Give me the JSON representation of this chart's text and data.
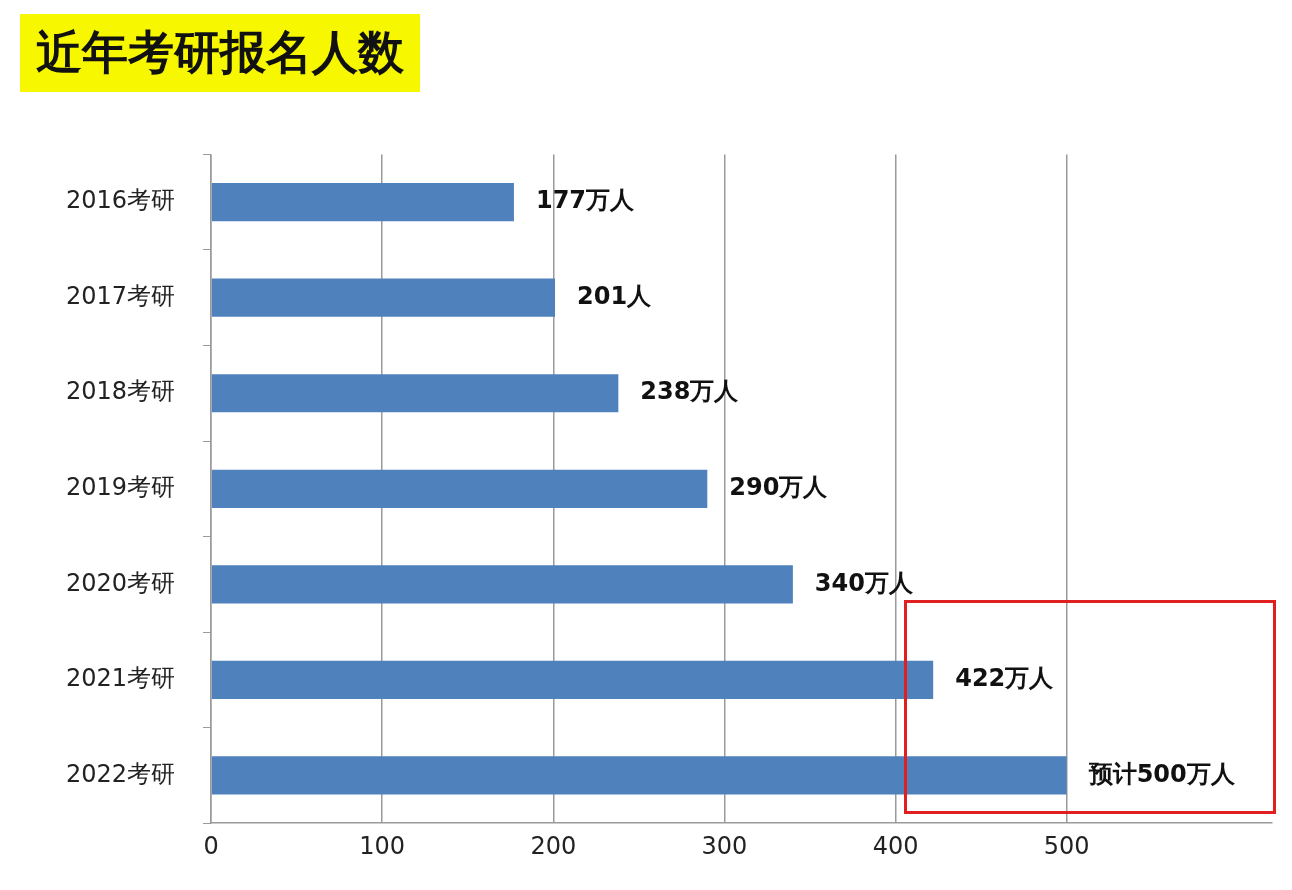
{
  "chart_data": {
    "type": "bar",
    "orientation": "horizontal",
    "title": "近年考研报名人数",
    "categories": [
      "2016考研",
      "2017考研",
      "2018考研",
      "2019考研",
      "2020考研",
      "2021考研",
      "2022考研"
    ],
    "values": [
      177,
      201,
      238,
      290,
      340,
      422,
      500
    ],
    "value_labels": [
      "177万人",
      "201人",
      "238万人",
      "290万人",
      "340万人",
      "422万人",
      "预计500万人"
    ],
    "color": "#4f81bd",
    "xlim": [
      0,
      620
    ],
    "xticks": [
      0,
      100,
      200,
      300,
      400,
      500
    ],
    "grid": "x",
    "legend": false
  }
}
